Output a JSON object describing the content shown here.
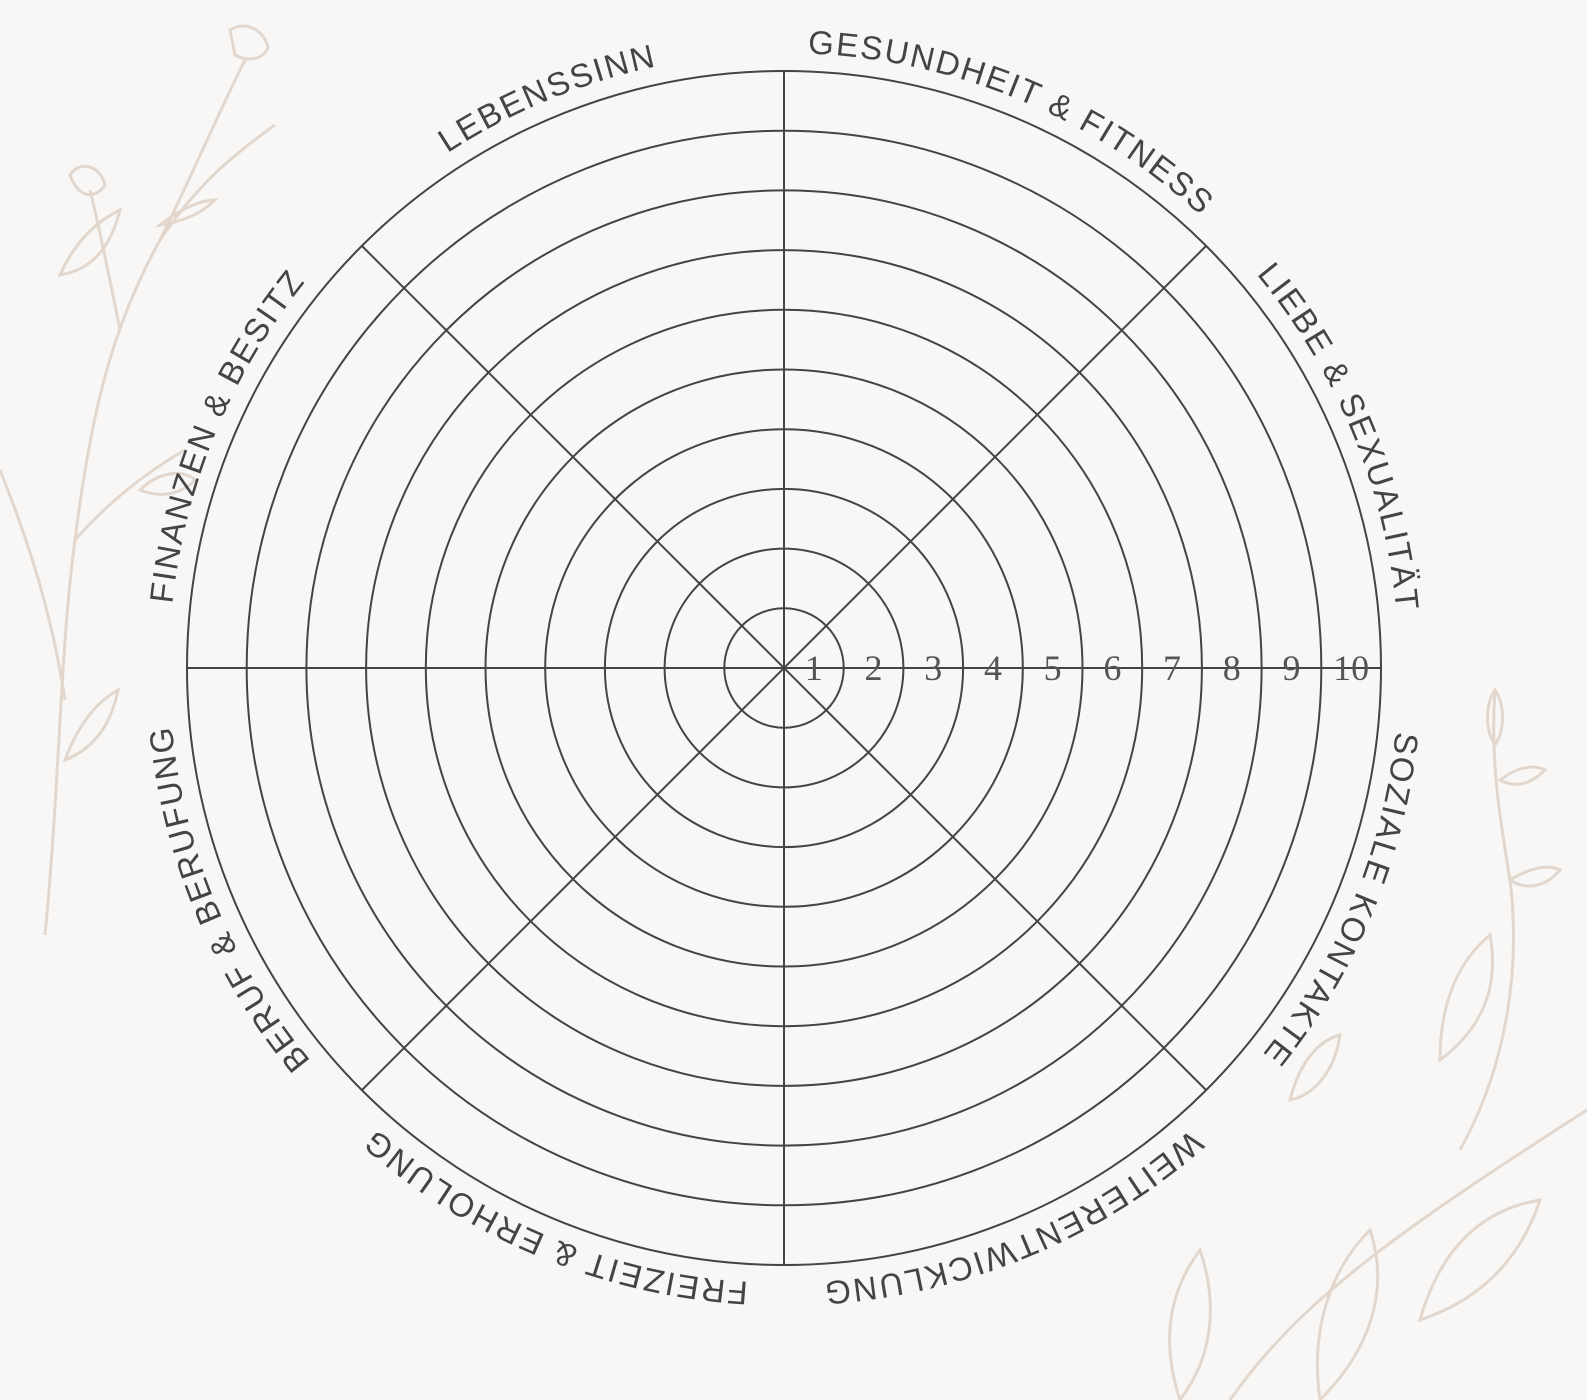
{
  "segments": [
    {
      "label": "LEBENSSINN"
    },
    {
      "label": "GESUNDHEIT & FITNESS"
    },
    {
      "label": "LIEBE & SEXUALITÄT"
    },
    {
      "label": "SOZIALE KONTAKTE"
    },
    {
      "label": "WEITERENTWICKLUNG"
    },
    {
      "label": "FREIZEIT & ERHOLUNG"
    },
    {
      "label": "BERUF & BERUFUNG"
    },
    {
      "label": "FINANZEN & BESITZ"
    }
  ],
  "scale": [
    1,
    2,
    3,
    4,
    5,
    6,
    7,
    8,
    9,
    10
  ]
}
